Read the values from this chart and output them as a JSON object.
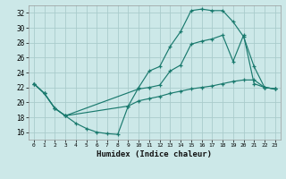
{
  "xlabel": "Humidex (Indice chaleur)",
  "bg_color": "#cce8e8",
  "grid_color": "#aacccc",
  "line_color": "#1a7a6e",
  "xlim": [
    -0.5,
    23.5
  ],
  "ylim": [
    15.0,
    33.0
  ],
  "xticks": [
    0,
    1,
    2,
    3,
    4,
    5,
    6,
    7,
    8,
    9,
    10,
    11,
    12,
    13,
    14,
    15,
    16,
    17,
    18,
    19,
    20,
    21,
    22,
    23
  ],
  "yticks": [
    16,
    18,
    20,
    22,
    24,
    26,
    28,
    30,
    32
  ],
  "line1_x": [
    0,
    1,
    2,
    3,
    4,
    5,
    6,
    7,
    8,
    9,
    10,
    11,
    12,
    13,
    14,
    15,
    16,
    17,
    18,
    19,
    20,
    21,
    22,
    23
  ],
  "line1_y": [
    22.5,
    21.2,
    19.2,
    18.2,
    17.2,
    16.5,
    16.0,
    15.8,
    15.7,
    19.5,
    22.0,
    24.2,
    24.8,
    27.5,
    29.5,
    32.3,
    32.5,
    32.3,
    32.3,
    30.8,
    28.8,
    24.8,
    22.0,
    21.8
  ],
  "line2_x": [
    0,
    1,
    2,
    3,
    10,
    11,
    12,
    13,
    14,
    15,
    16,
    17,
    18,
    19,
    20,
    21,
    22,
    23
  ],
  "line2_y": [
    22.5,
    21.2,
    19.2,
    18.2,
    21.8,
    22.0,
    22.3,
    24.2,
    25.0,
    27.8,
    28.2,
    28.5,
    29.0,
    25.5,
    29.0,
    22.5,
    22.0,
    21.8
  ],
  "line3_x": [
    0,
    1,
    2,
    3,
    9,
    10,
    11,
    12,
    13,
    14,
    15,
    16,
    17,
    18,
    19,
    20,
    21,
    22,
    23
  ],
  "line3_y": [
    22.5,
    21.2,
    19.2,
    18.2,
    19.5,
    20.2,
    20.5,
    20.8,
    21.2,
    21.5,
    21.8,
    22.0,
    22.2,
    22.5,
    22.8,
    23.0,
    23.0,
    22.0,
    21.8
  ]
}
